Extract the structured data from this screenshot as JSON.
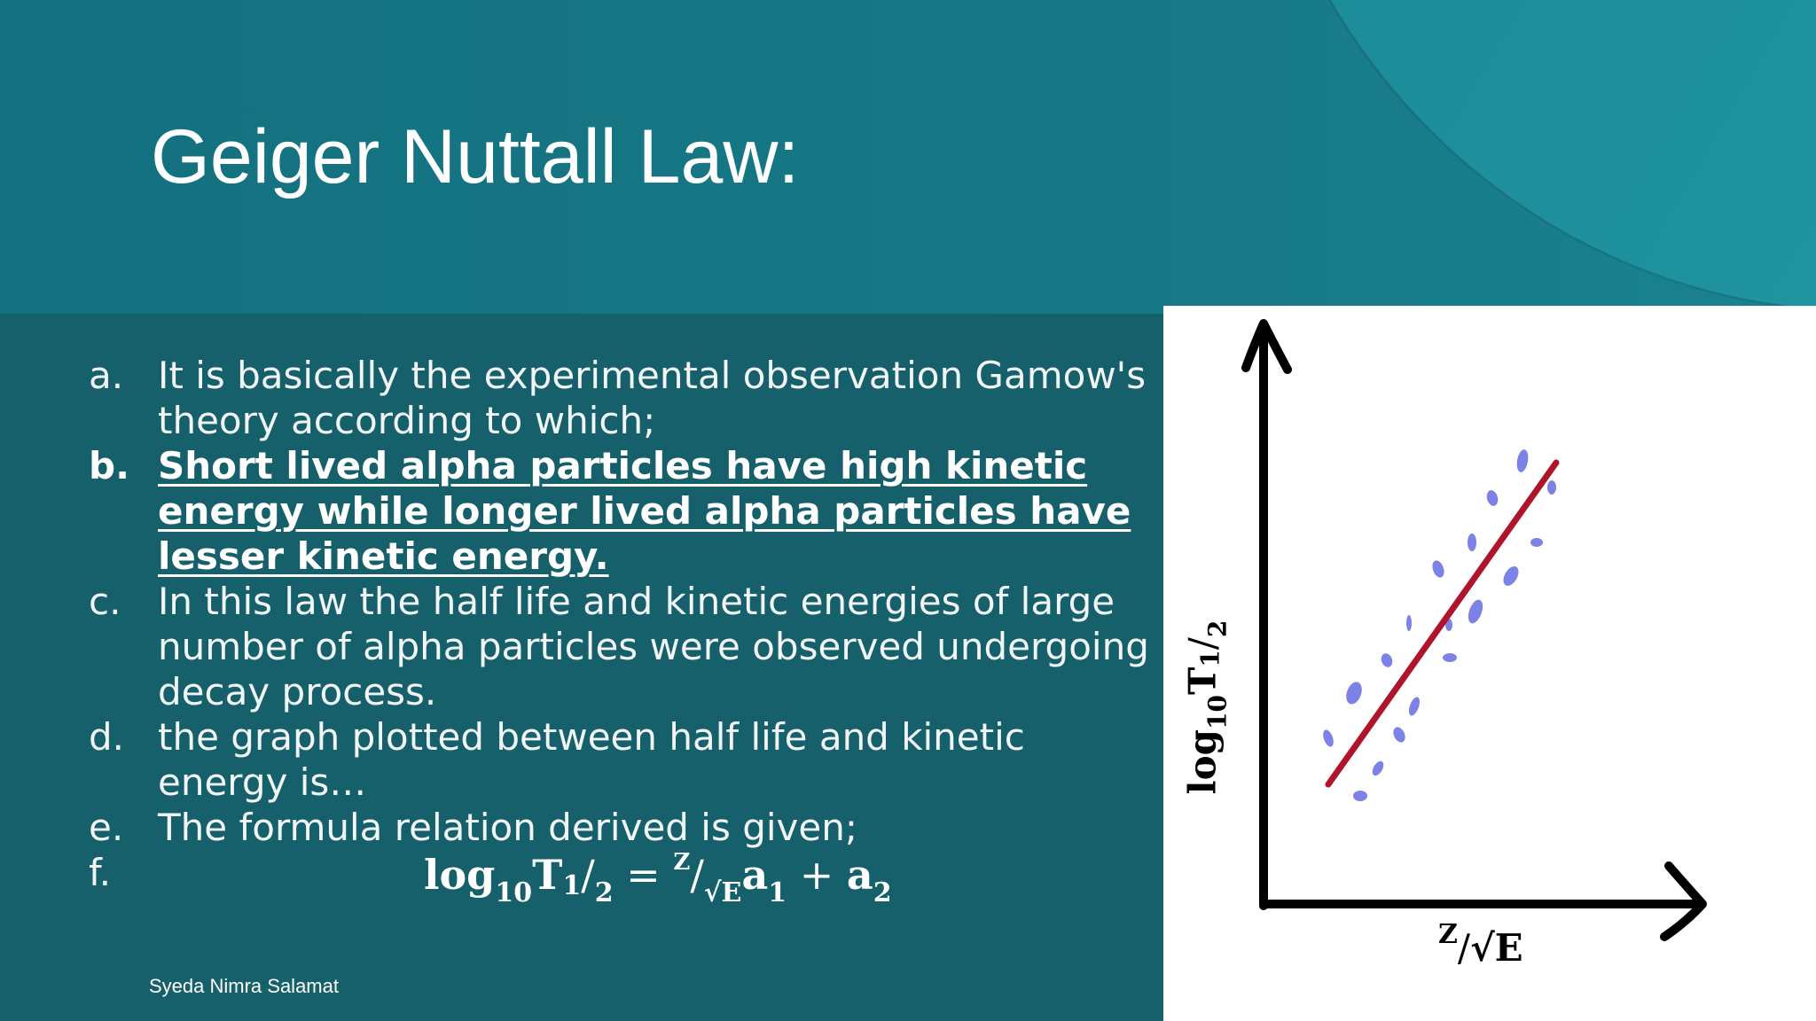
{
  "slide": {
    "title": "Geiger Nuttall Law:",
    "author": "Syeda Nimra Salamat"
  },
  "bullets": [
    {
      "marker": "a.",
      "text": "It is basically the experimental observation Gamow's theory according to which;"
    },
    {
      "marker": "b.",
      "text": "Short lived alpha particles have high kinetic energy while longer lived alpha particles have lesser kinetic energy."
    },
    {
      "marker": "c.",
      "text": "In this law the half life and kinetic energies of large number of alpha particles were observed undergoing decay process."
    },
    {
      "marker": "d.",
      "text": " the graph plotted between half life and kinetic energy is…"
    },
    {
      "marker": "e.",
      "text": " The formula relation derived is given;"
    },
    {
      "marker": "f.",
      "text": ""
    }
  ],
  "formula": {
    "log": "log",
    "base": "10",
    "T": "T",
    "half_num": "1",
    "slash": "/",
    "half_den": "2",
    "equals": " = ",
    "z": "Z",
    "sqrt_e": "√E",
    "a": "a",
    "a1_sub": "1",
    "plus": " + ",
    "a2_sub": "2"
  },
  "graph": {
    "y_axis": {
      "log": "log",
      "base": "10",
      "T": "T",
      "half_num": "1",
      "slash": "/",
      "half_den": "2"
    },
    "x_axis": {
      "z": "Z",
      "slash": "/",
      "sqrt_e": "√E"
    },
    "colors": {
      "fit_line": "#b0142a",
      "points": "#7d82e6",
      "axes": "#000000"
    }
  }
}
